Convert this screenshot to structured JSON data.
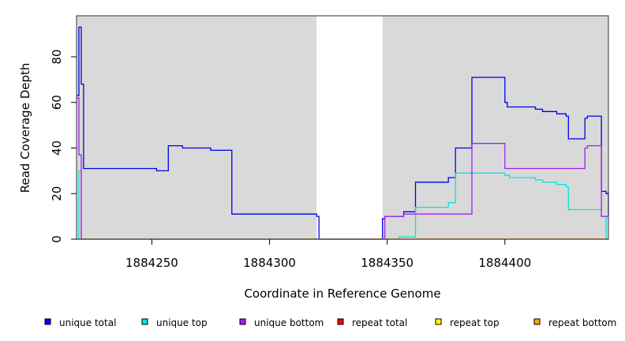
{
  "chart_data": {
    "type": "line",
    "xlabel": "Coordinate in Reference Genome",
    "ylabel": "Read Coverage Depth",
    "xlim": [
      1884218,
      1884444
    ],
    "ylim": [
      0,
      98
    ],
    "x_ticks": [
      1884250,
      1884300,
      1884350,
      1884400
    ],
    "y_ticks": [
      0,
      20,
      40,
      60,
      80
    ],
    "background_color": "#d9d9d9",
    "shaded_regions": [
      [
        1884218,
        1884320
      ],
      [
        1884348,
        1884444
      ]
    ],
    "legend_position": "bottom",
    "series": [
      {
        "name": "unique total",
        "color": "#0000ee",
        "points": [
          [
            1884218,
            63
          ],
          [
            1884219,
            93
          ],
          [
            1884220,
            68
          ],
          [
            1884221,
            31
          ],
          [
            1884252,
            30
          ],
          [
            1884257,
            41
          ],
          [
            1884263,
            40
          ],
          [
            1884275,
            39
          ],
          [
            1884284,
            11
          ],
          [
            1884320,
            10
          ],
          [
            1884321,
            0
          ],
          [
            1884348,
            9
          ],
          [
            1884349,
            10
          ],
          [
            1884357,
            12
          ],
          [
            1884362,
            25
          ],
          [
            1884376,
            27
          ],
          [
            1884379,
            40
          ],
          [
            1884386,
            71
          ],
          [
            1884400,
            60
          ],
          [
            1884401,
            58
          ],
          [
            1884413,
            57
          ],
          [
            1884416,
            56
          ],
          [
            1884422,
            55
          ],
          [
            1884426,
            54
          ],
          [
            1884427,
            44
          ],
          [
            1884434,
            53
          ],
          [
            1884435,
            54
          ],
          [
            1884441,
            21
          ],
          [
            1884443,
            20
          ],
          [
            1884444,
            10
          ]
        ]
      },
      {
        "name": "unique top",
        "color": "#00e5e5",
        "points": [
          [
            1884218,
            0
          ],
          [
            1884219,
            30
          ],
          [
            1884220,
            0
          ],
          [
            1884348,
            0
          ],
          [
            1884355,
            1
          ],
          [
            1884362,
            14
          ],
          [
            1884376,
            16
          ],
          [
            1884379,
            29
          ],
          [
            1884386,
            29
          ],
          [
            1884400,
            28
          ],
          [
            1884402,
            27
          ],
          [
            1884413,
            26
          ],
          [
            1884416,
            25
          ],
          [
            1884422,
            24
          ],
          [
            1884426,
            23
          ],
          [
            1884427,
            13
          ],
          [
            1884441,
            10
          ],
          [
            1884443,
            0
          ]
        ]
      },
      {
        "name": "unique bottom",
        "color": "#a020f0",
        "points": [
          [
            1884218,
            62
          ],
          [
            1884219,
            37
          ],
          [
            1884220,
            0
          ],
          [
            1884348,
            0
          ],
          [
            1884349,
            10
          ],
          [
            1884357,
            11
          ],
          [
            1884386,
            42
          ],
          [
            1884400,
            31
          ],
          [
            1884434,
            40
          ],
          [
            1884435,
            41
          ],
          [
            1884441,
            10
          ],
          [
            1884444,
            10
          ]
        ]
      },
      {
        "name": "repeat total",
        "color": "#ff0000",
        "points": [
          [
            1884218,
            0
          ],
          [
            1884444,
            0
          ]
        ]
      },
      {
        "name": "repeat top",
        "color": "#ffff00",
        "points": [
          [
            1884218,
            0
          ],
          [
            1884444,
            0
          ]
        ]
      },
      {
        "name": "repeat bottom",
        "color": "#ffa500",
        "points": [
          [
            1884348,
            0
          ],
          [
            1884444,
            0
          ]
        ]
      }
    ]
  }
}
